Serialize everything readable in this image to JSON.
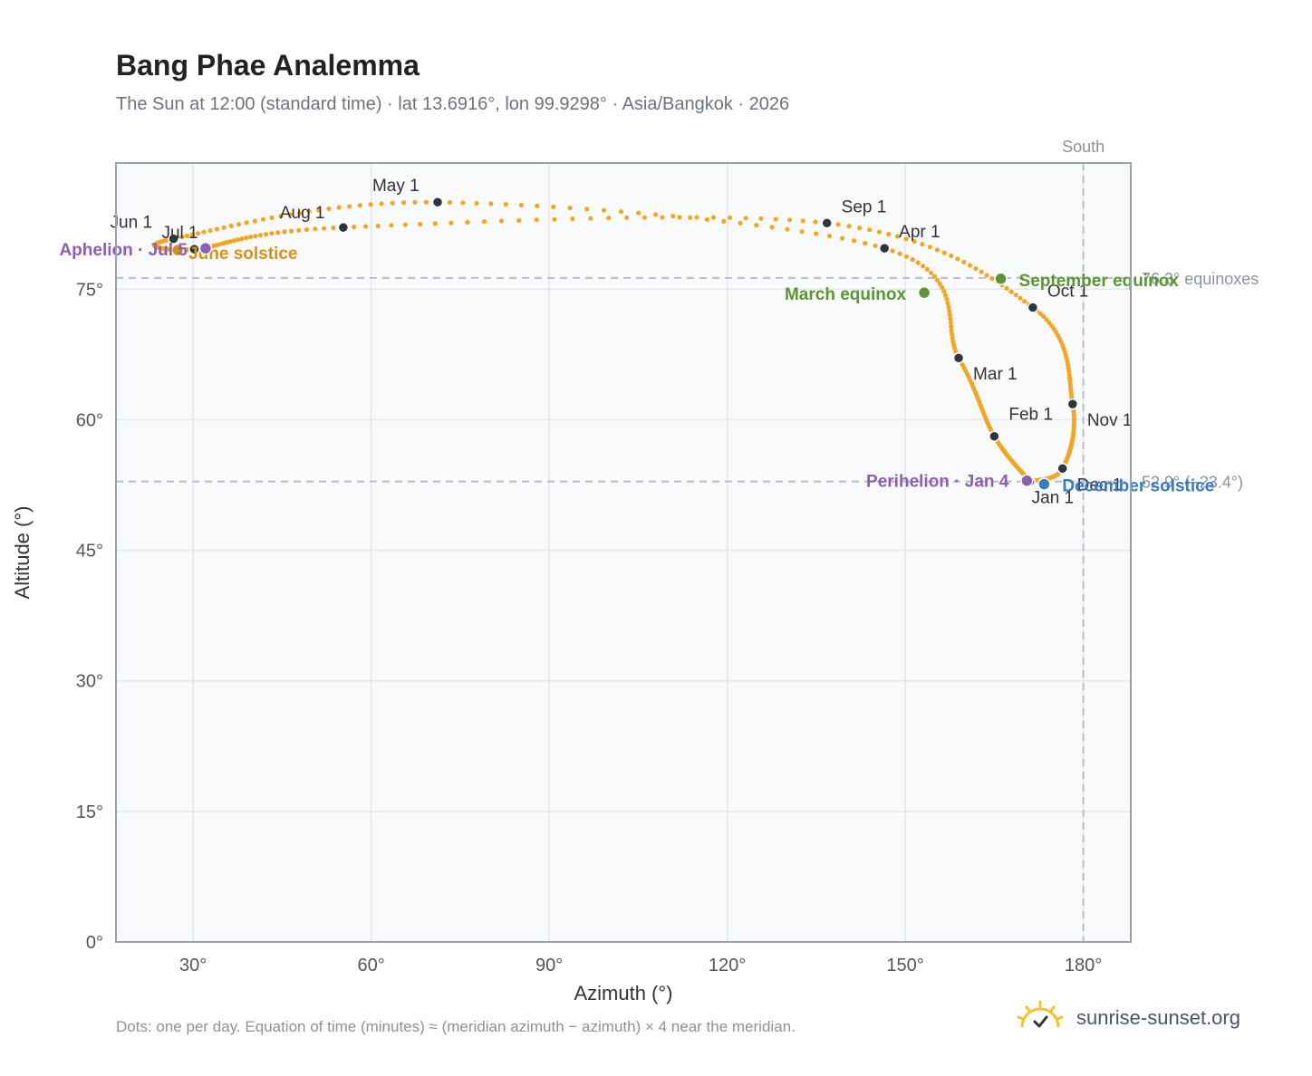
{
  "title": "Bang Phae Analemma",
  "subtitle": "The Sun at 12:00 (standard time) · lat 13.6916°, lon 99.9298° · Asia/Bangkok · 2026",
  "footnote": "Dots: one per day. Equation of time (minutes) ≈ (meridian azimuth − azimuth) × 4 near the meridian.",
  "brand": "sunrise-sunset.org",
  "colors": {
    "path": "#f2a623",
    "month_marker": "#2d3540",
    "equinox": "#5b9632",
    "june_solstice": "#d4911b",
    "december_solstice": "#3b7bbf",
    "apsis": "#8e5fb0",
    "plot_bg": "#f8fafc",
    "grid": "#e3e7ec",
    "reference": "#b8bec6"
  },
  "chart_data": {
    "type": "scatter",
    "xlabel": "Azimuth (°)",
    "ylabel": "Altitude (°)",
    "xlim": [
      17,
      188
    ],
    "ylim": [
      0,
      89.5
    ],
    "xticks": [
      30,
      60,
      90,
      120,
      150,
      180
    ],
    "xtick_labels": [
      "30°",
      "60°",
      "90°",
      "120°",
      "150°",
      "180°"
    ],
    "yticks": [
      0,
      15,
      30,
      45,
      60,
      75
    ],
    "ytick_labels": [
      "0°",
      "15°",
      "30°",
      "45°",
      "60°",
      "75°"
    ],
    "grid": true,
    "south_azimuth": 180,
    "south_label": "South",
    "reference_lines": [
      {
        "altitude": 76.3,
        "label": "76.3° equinoxes"
      },
      {
        "altitude": 52.9,
        "label": "52.9° (−23.4°)"
      }
    ],
    "daily_path": {
      "dates": [
        "Jan 1",
        "Feb 1",
        "Mar 1",
        "Apr 1",
        "May 1",
        "Jun 1",
        "Jul 1",
        "Aug 1",
        "Sep 1",
        "Oct 1",
        "Nov 1",
        "Dec 1",
        "Jan 1"
      ],
      "azimuth": [
        171.0,
        165.0,
        159.0,
        146.5,
        71.2,
        26.7,
        30.2,
        55.3,
        136.8,
        171.5,
        178.2,
        176.5,
        171.0
      ],
      "altitude": [
        52.9,
        58.1,
        67.1,
        79.7,
        85.0,
        80.8,
        79.6,
        82.1,
        82.6,
        72.9,
        61.8,
        54.4,
        52.9
      ]
    },
    "month_markers": [
      {
        "label": "Jan 1",
        "az": 171.0,
        "alt": 52.9
      },
      {
        "label": "Feb 1",
        "az": 165.0,
        "alt": 58.1
      },
      {
        "label": "Mar 1",
        "az": 159.0,
        "alt": 67.1
      },
      {
        "label": "Apr 1",
        "az": 146.5,
        "alt": 79.7
      },
      {
        "label": "May 1",
        "az": 71.2,
        "alt": 85.0
      },
      {
        "label": "Jun 1",
        "az": 26.7,
        "alt": 80.8
      },
      {
        "label": "Jul 1",
        "az": 30.2,
        "alt": 79.6
      },
      {
        "label": "Aug 1",
        "az": 55.3,
        "alt": 82.1
      },
      {
        "label": "Sep 1",
        "az": 136.8,
        "alt": 82.6
      },
      {
        "label": "Oct 1",
        "az": 171.5,
        "alt": 72.9
      },
      {
        "label": "Nov 1",
        "az": 178.2,
        "alt": 61.8
      },
      {
        "label": "Dec 1",
        "az": 176.5,
        "alt": 54.4
      }
    ],
    "special_points": [
      {
        "label": "March equinox",
        "az": 153.2,
        "alt": 74.6,
        "color_key": "equinox"
      },
      {
        "label": "September equinox",
        "az": 166.1,
        "alt": 76.2,
        "color_key": "equinox"
      },
      {
        "label": "June solstice",
        "az": 27.4,
        "alt": 79.5,
        "color_key": "june_solstice"
      },
      {
        "label": "December solstice",
        "az": 173.4,
        "alt": 52.6,
        "color_key": "december_solstice"
      },
      {
        "label": "Perihelion · Jan 4",
        "az": 170.5,
        "alt": 53.0,
        "color_key": "apsis"
      },
      {
        "label": "Aphelion · Jul 5",
        "az": 32.1,
        "alt": 79.7,
        "color_key": "apsis"
      }
    ]
  }
}
